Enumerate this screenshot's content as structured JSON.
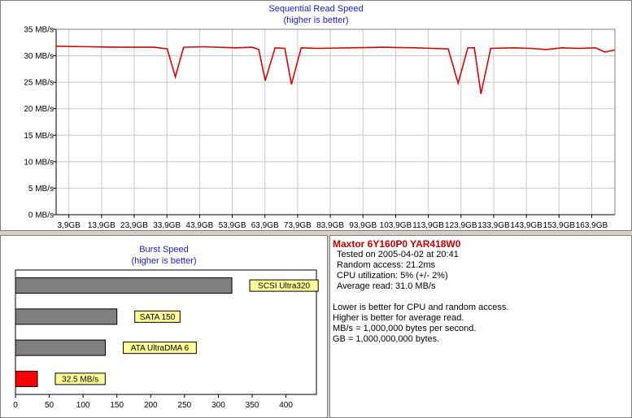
{
  "sequential": {
    "title": "Sequential Read Speed",
    "subtitle": "(higher is better)"
  },
  "burst": {
    "title": "Burst Speed",
    "subtitle": "(higher is better)"
  },
  "info": {
    "drive": "Maxtor 6Y160P0 YAR418W0",
    "lines": [
      "Tested on 2005-04-02 at 20:41",
      "Random access: 21.2ms",
      "CPU utilization: 5% (+/- 2%)",
      "Average read: 31.0 MB/s"
    ],
    "notes": [
      "Lower is better for CPU and random access.",
      "Higher is better for average read.",
      "MB/s = 1,000,000 bytes per second.",
      "GB = 1,000,000,000 bytes."
    ]
  },
  "chart_data": [
    {
      "type": "line",
      "title": "Sequential Read Speed",
      "subtitle": "(higher is better)",
      "ylim": [
        0,
        35
      ],
      "yticks": [
        0,
        5,
        10,
        15,
        20,
        25,
        30,
        35
      ],
      "ytick_labels": [
        "0 MB/s",
        "5 MB/s",
        "10 MB/s",
        "15 MB/s",
        "20 MB/s",
        "25 MB/s",
        "30 MB/s",
        "35 MB/s"
      ],
      "xlim": [
        0,
        171
      ],
      "xticks": [
        3.9,
        13.9,
        23.9,
        33.9,
        43.9,
        53.9,
        63.9,
        73.9,
        83.9,
        93.9,
        103.9,
        113.9,
        123.9,
        133.9,
        143.9,
        153.9,
        163.9
      ],
      "xtick_labels": [
        "3,9GB",
        "13,9GB",
        "23,9GB",
        "33,9GB",
        "43,9GB",
        "53,9GB",
        "63,9GB",
        "73,9GB",
        "83,9GB",
        "93,9GB",
        "103,9GB",
        "113,9GB",
        "123,9GB",
        "133,9GB",
        "143,9GB",
        "153,9GB",
        "163,9GB"
      ],
      "grid": true,
      "color": "#e00000",
      "x": [
        0,
        10,
        20,
        30,
        34,
        36.5,
        39,
        45,
        55,
        60,
        62,
        64,
        67,
        70,
        72,
        75,
        80,
        90,
        100,
        110,
        115,
        120,
        123,
        126,
        128,
        130,
        133,
        140,
        145,
        150,
        155,
        160,
        165,
        168,
        171
      ],
      "y": [
        31.8,
        31.7,
        31.6,
        31.6,
        31.3,
        26.0,
        31.6,
        31.7,
        31.5,
        31.6,
        31.2,
        25.3,
        31.5,
        31.4,
        24.6,
        31.5,
        31.4,
        31.5,
        31.6,
        31.5,
        31.4,
        31.3,
        24.8,
        31.5,
        31.5,
        22.8,
        31.4,
        31.5,
        31.4,
        31.2,
        31.5,
        31.4,
        31.5,
        30.7,
        31.1
      ]
    },
    {
      "type": "bar",
      "orientation": "horizontal",
      "title": "Burst Speed",
      "subtitle": "(higher is better)",
      "xlim": [
        0,
        445
      ],
      "xticks": [
        0,
        50,
        100,
        150,
        200,
        250,
        300,
        350,
        400
      ],
      "categories": [
        "SCSI Ultra320",
        "SATA 150",
        "ATA UltraDMA 6",
        "32.5 MB/s"
      ],
      "values": [
        320,
        150,
        133,
        32.5
      ],
      "colors": [
        "#808080",
        "#808080",
        "#808080",
        "#ff0000"
      ],
      "label_bg": "#ffff99"
    }
  ]
}
